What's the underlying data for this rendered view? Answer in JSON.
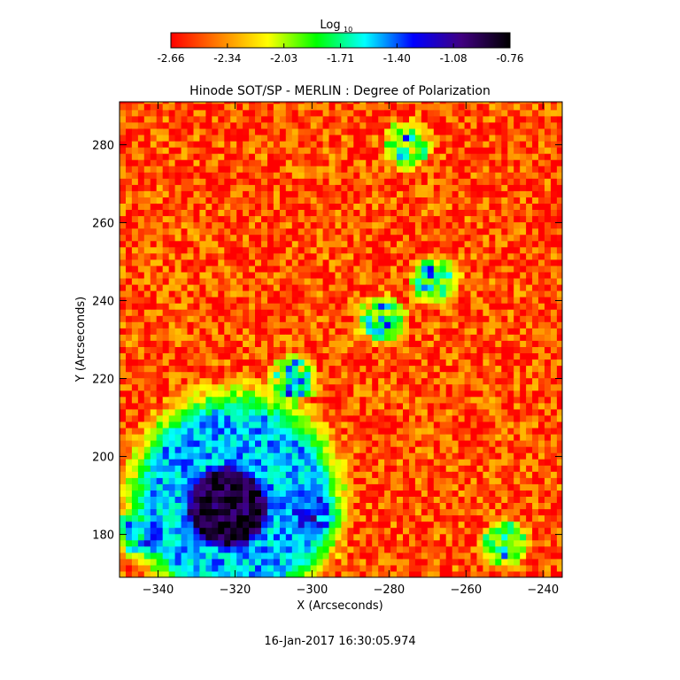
{
  "colorbar": {
    "title": "Log",
    "title_sub": "10",
    "tick_labels": [
      "-2.66",
      "-2.34",
      "-2.03",
      "-1.71",
      "-1.40",
      "-1.08",
      "-0.76"
    ],
    "range": [
      -2.66,
      -0.76
    ],
    "colormap": [
      "#ff0000",
      "#ff8000",
      "#ffff00",
      "#00ff00",
      "#00ffff",
      "#0000ff",
      "#400080",
      "#000000"
    ]
  },
  "footer": {
    "timestamp": "16-Jan-2017 16:30:05.974"
  },
  "chart_data": {
    "type": "heatmap",
    "title": "Hinode SOT/SP - MERLIN : Degree of Polarization",
    "xlabel": "X (Arcseconds)",
    "ylabel": "Y (Arcseconds)",
    "xlim": [
      -350,
      -235
    ],
    "ylim": [
      169,
      291
    ],
    "x_ticks": [
      -340,
      -320,
      -300,
      -280,
      -260,
      -240
    ],
    "y_ticks": [
      180,
      200,
      220,
      240,
      260,
      280
    ],
    "value_scale": "log10",
    "background_value": -2.6,
    "features": [
      {
        "kind": "sunspot",
        "x": -322,
        "y": 187,
        "value": -0.9
      },
      {
        "kind": "penumbra",
        "x": -320,
        "y": 189,
        "value": -1.5
      },
      {
        "kind": "plage",
        "x": -300,
        "y": 185,
        "value": -1.3
      },
      {
        "kind": "plage",
        "x": -305,
        "y": 220,
        "value": -1.4
      },
      {
        "kind": "plage",
        "x": -282,
        "y": 235,
        "value": -1.4
      },
      {
        "kind": "plage",
        "x": -268,
        "y": 245,
        "value": -1.4
      },
      {
        "kind": "plage",
        "x": -275,
        "y": 280,
        "value": -1.5
      },
      {
        "kind": "plage",
        "x": -345,
        "y": 180,
        "value": -1.4
      },
      {
        "kind": "plage",
        "x": -250,
        "y": 178,
        "value": -1.5
      }
    ]
  }
}
